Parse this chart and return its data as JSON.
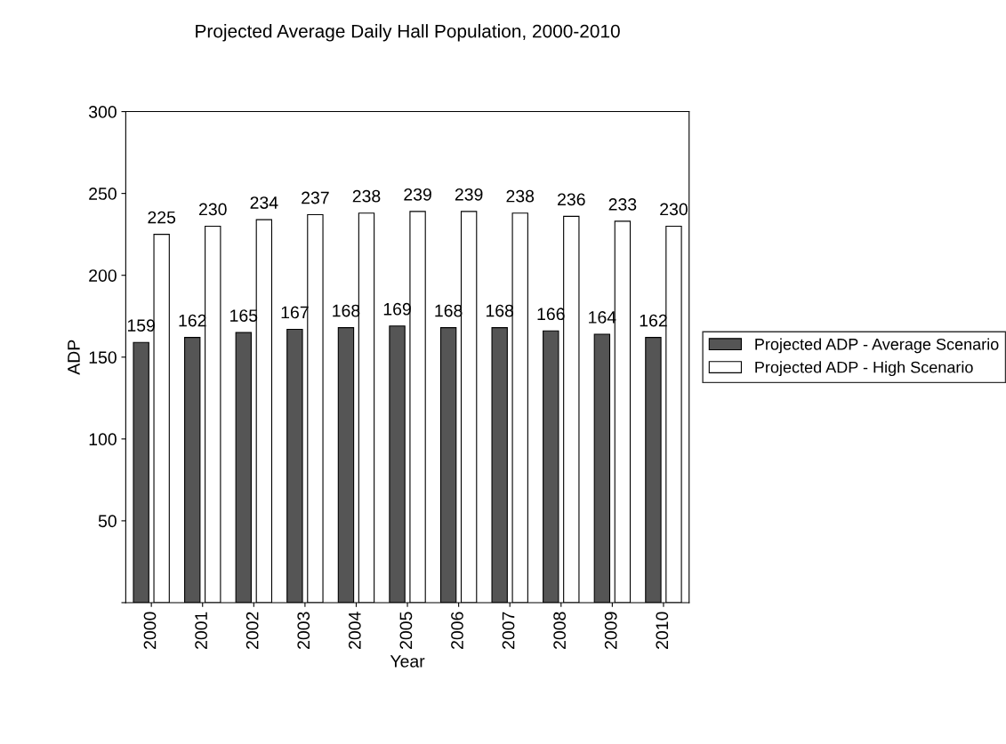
{
  "chart_data": {
    "type": "bar",
    "title": "Projected Average Daily Hall Population, 2000-2010",
    "xlabel": "Year",
    "ylabel": "ADP",
    "categories": [
      "2000",
      "2001",
      "2002",
      "2003",
      "2004",
      "2005",
      "2006",
      "2007",
      "2008",
      "2009",
      "2010"
    ],
    "series": [
      {
        "name": "Projected ADP - Average Scenario",
        "color": "#555555",
        "values": [
          159,
          162,
          165,
          167,
          168,
          169,
          168,
          168,
          166,
          164,
          162
        ]
      },
      {
        "name": "Projected ADP - High Scenario",
        "color": "#ffffff",
        "values": [
          225,
          230,
          234,
          237,
          238,
          239,
          239,
          238,
          236,
          233,
          230
        ]
      }
    ],
    "ylim": [
      0,
      300
    ],
    "yticks": [
      {
        "value": 0,
        "label": null
      },
      50,
      100,
      150,
      200,
      250,
      300
    ],
    "data_labels": true,
    "grid": false,
    "legend": "right"
  }
}
